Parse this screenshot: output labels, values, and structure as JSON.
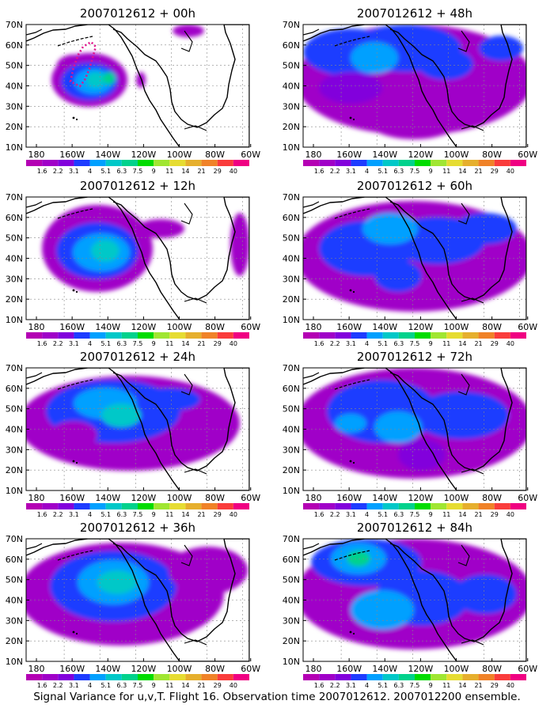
{
  "figure": {
    "caption": "Signal Variance for u,v,T. Flight 16. Observation time 2007012612. 2007012200 ensemble."
  },
  "axes": {
    "lat_labels": [
      "10N",
      "20N",
      "30N",
      "40N",
      "50N",
      "60N",
      "70N"
    ],
    "lon_labels": [
      "180",
      "160W",
      "140W",
      "120W",
      "100W",
      "80W",
      "60W"
    ]
  },
  "colorbar": {
    "labels": [
      "1.6",
      "2.2",
      "3.1",
      "4",
      "5.1",
      "6.3",
      "7.5",
      "9",
      "11",
      "14",
      "21",
      "29",
      "40"
    ],
    "colors": [
      "#a000c8",
      "#8200dc",
      "#1e3cff",
      "#00a0ff",
      "#00c8c8",
      "#00d28c",
      "#00dc00",
      "#a0e632",
      "#e6dc32",
      "#e6af2d",
      "#f08228",
      "#fa3c3c",
      "#f00082"
    ]
  },
  "panels": [
    {
      "title": "2007012612 + 00h",
      "forecast_hour": 0
    },
    {
      "title": "2007012612 + 48h",
      "forecast_hour": 48
    },
    {
      "title": "2007012612 + 12h",
      "forecast_hour": 12
    },
    {
      "title": "2007012612 + 60h",
      "forecast_hour": 60
    },
    {
      "title": "2007012612 + 24h",
      "forecast_hour": 24
    },
    {
      "title": "2007012612 + 72h",
      "forecast_hour": 72
    },
    {
      "title": "2007012612 + 36h",
      "forecast_hour": 36
    },
    {
      "title": "2007012612 + 84h",
      "forecast_hour": 84
    }
  ],
  "map": {
    "lon_range": [
      "170E",
      "60W"
    ],
    "lat_range": [
      10,
      70
    ],
    "gridlines": "dashed",
    "flight_track_panel": "2007012612 + 00h",
    "flight_track_color": "#e0148c"
  }
}
